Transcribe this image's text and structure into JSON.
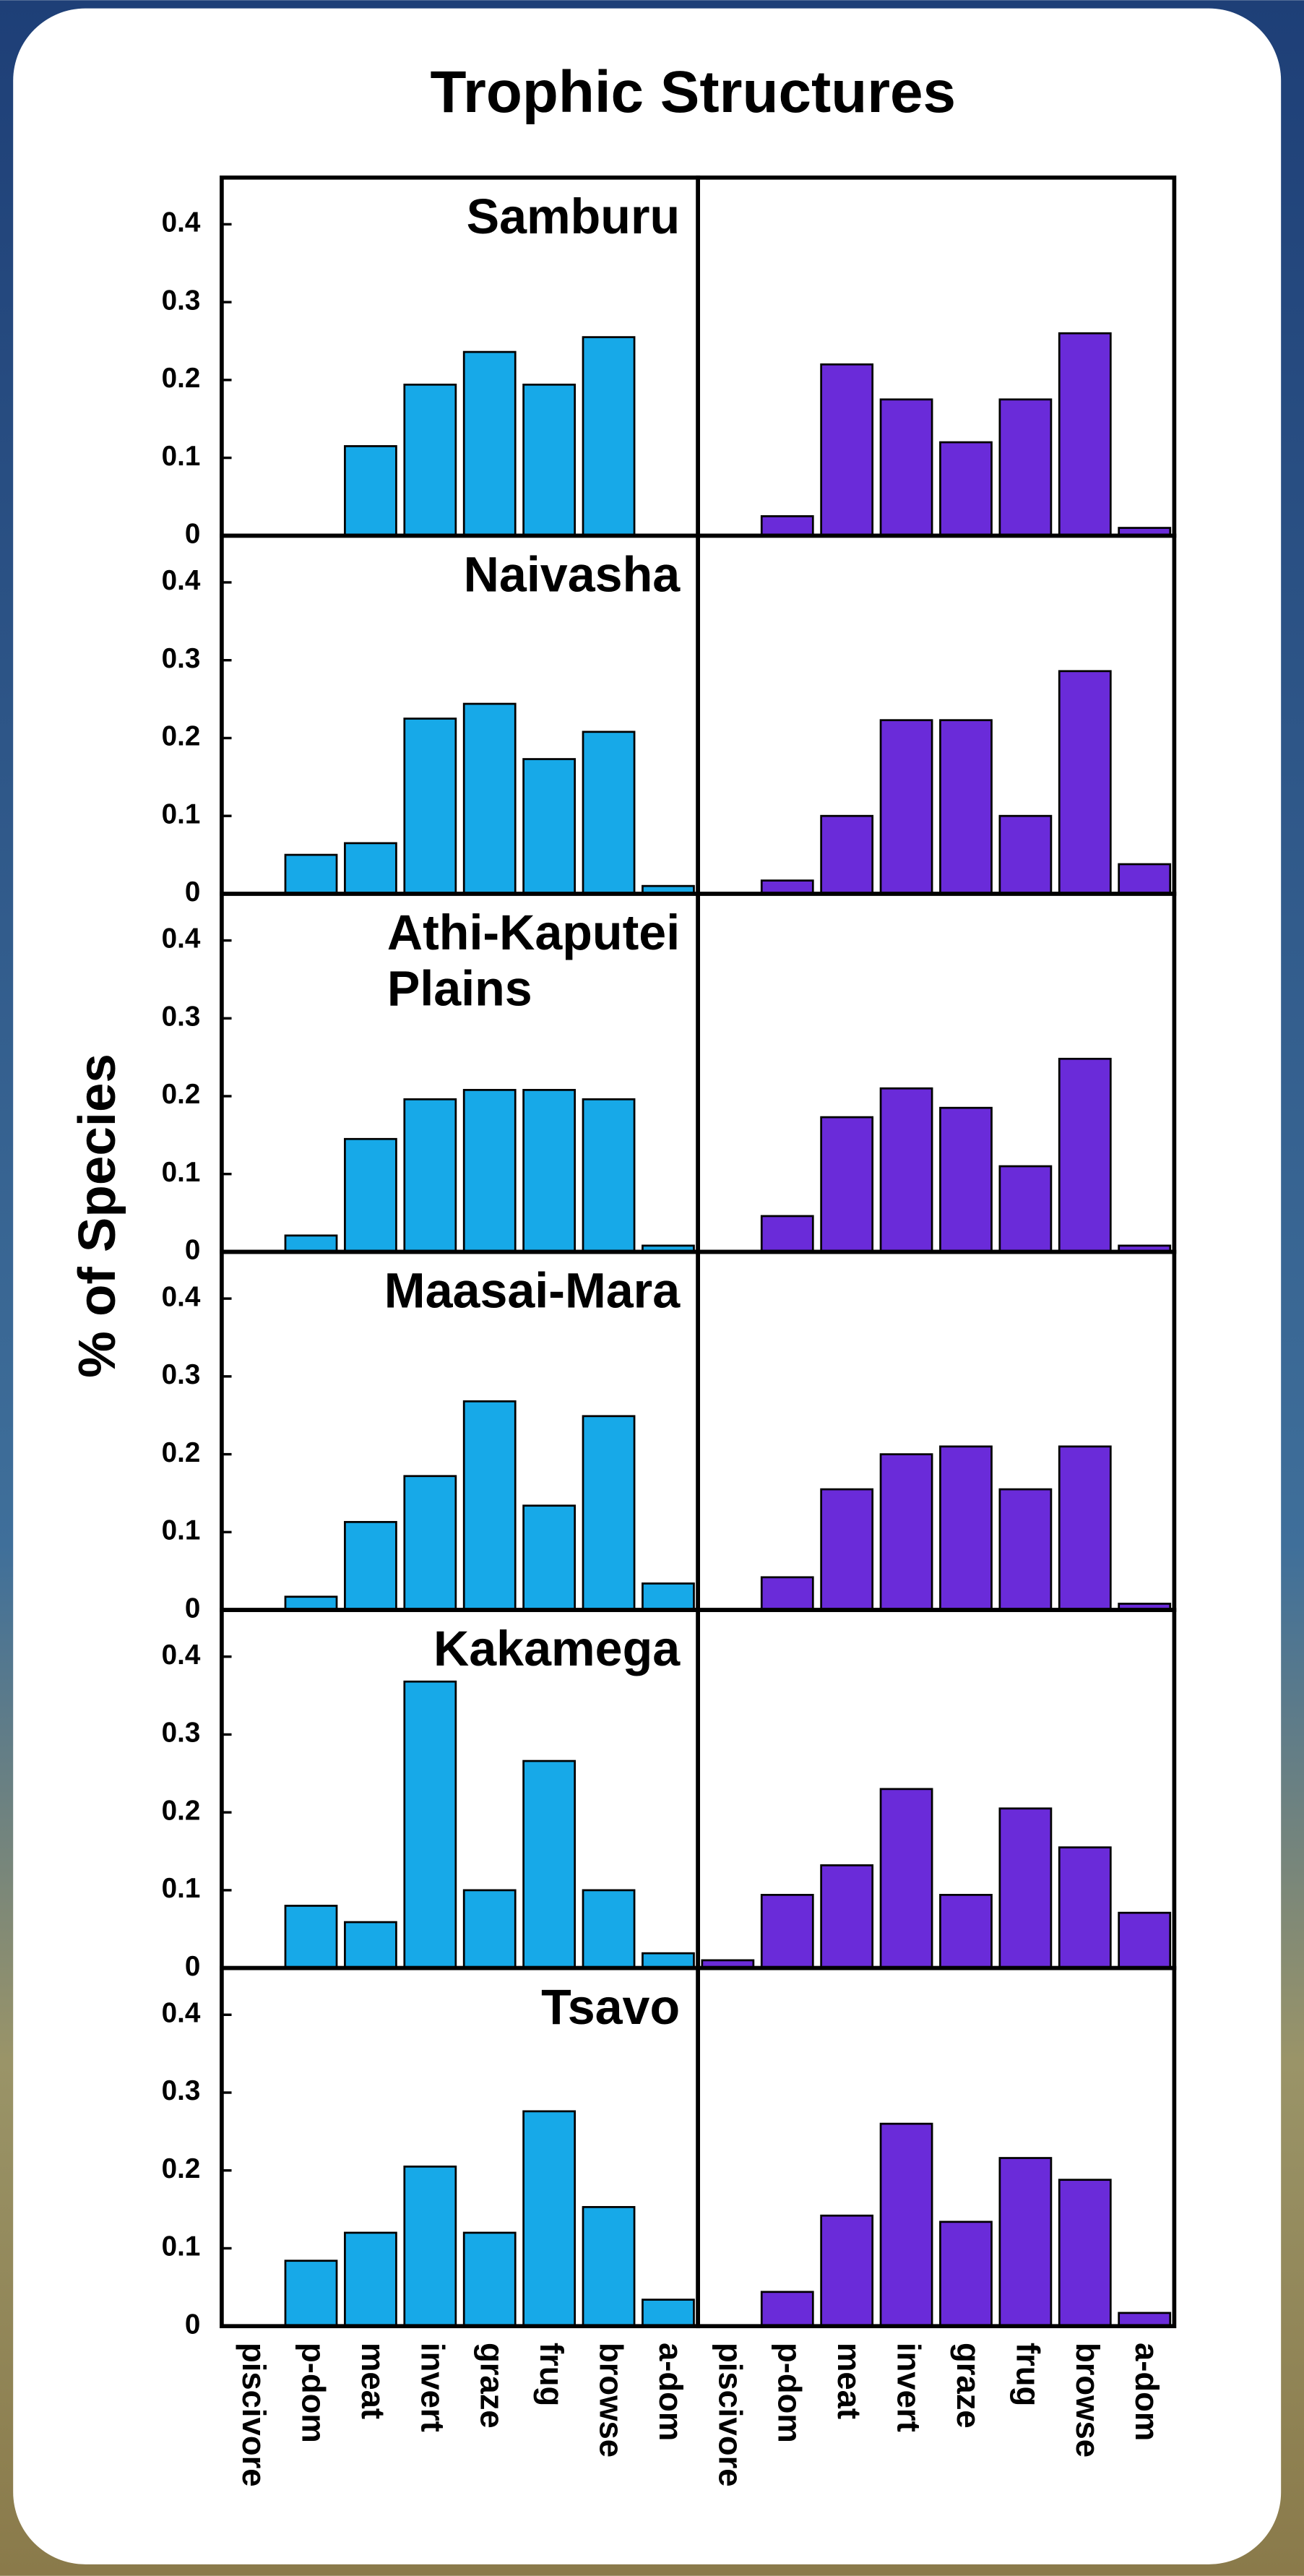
{
  "chart_data": {
    "type": "bar",
    "title": "Trophic Structures",
    "y_label": "% of Species",
    "categories": [
      "piscivore",
      "p-dom",
      "meat",
      "invert",
      "graze",
      "frug",
      "browse",
      "a-dom"
    ],
    "ylim": [
      0,
      0.46
    ],
    "yticks": [
      0,
      0.1,
      0.2,
      0.3,
      0.4
    ],
    "rows": [
      {
        "name": "Samburu",
        "series": [
          {
            "color": "#17a9e8",
            "values": [
              0,
              0,
              0.115,
              0.194,
              0.236,
              0.194,
              0.255,
              0
            ]
          },
          {
            "color": "#6a2bd9",
            "values": [
              0,
              0.025,
              0.22,
              0.175,
              0.12,
              0.175,
              0.26,
              0.01
            ]
          }
        ]
      },
      {
        "name": "Naivasha",
        "series": [
          {
            "color": "#17a9e8",
            "values": [
              0,
              0.05,
              0.065,
              0.225,
              0.244,
              0.173,
              0.208,
              0.01
            ]
          },
          {
            "color": "#6a2bd9",
            "values": [
              0,
              0.017,
              0.1,
              0.223,
              0.223,
              0.1,
              0.286,
              0.038
            ]
          }
        ]
      },
      {
        "name": "Athi-Kaputei Plains",
        "series": [
          {
            "color": "#17a9e8",
            "values": [
              0,
              0.021,
              0.145,
              0.196,
              0.208,
              0.208,
              0.196,
              0.008
            ]
          },
          {
            "color": "#6a2bd9",
            "values": [
              0,
              0.046,
              0.173,
              0.21,
              0.185,
              0.11,
              0.248,
              0.008
            ]
          }
        ]
      },
      {
        "name": "Maasai-Mara",
        "series": [
          {
            "color": "#17a9e8",
            "values": [
              0,
              0.017,
              0.113,
              0.172,
              0.268,
              0.134,
              0.249,
              0.034
            ]
          },
          {
            "color": "#6a2bd9",
            "values": [
              0,
              0.042,
              0.155,
              0.2,
              0.21,
              0.155,
              0.21,
              0.008
            ]
          }
        ]
      },
      {
        "name": "Kakamega",
        "series": [
          {
            "color": "#17a9e8",
            "values": [
              0,
              0.08,
              0.059,
              0.368,
              0.1,
              0.266,
              0.1,
              0.019
            ]
          },
          {
            "color": "#6a2bd9",
            "values": [
              0.01,
              0.094,
              0.132,
              0.23,
              0.094,
              0.205,
              0.155,
              0.071
            ]
          }
        ]
      },
      {
        "name": "Tsavo",
        "series": [
          {
            "color": "#17a9e8",
            "values": [
              0,
              0.084,
              0.12,
              0.205,
              0.12,
              0.276,
              0.153,
              0.034
            ]
          },
          {
            "color": "#6a2bd9",
            "values": [
              0,
              0.044,
              0.142,
              0.26,
              0.134,
              0.216,
              0.188,
              0.017
            ]
          }
        ]
      }
    ]
  }
}
